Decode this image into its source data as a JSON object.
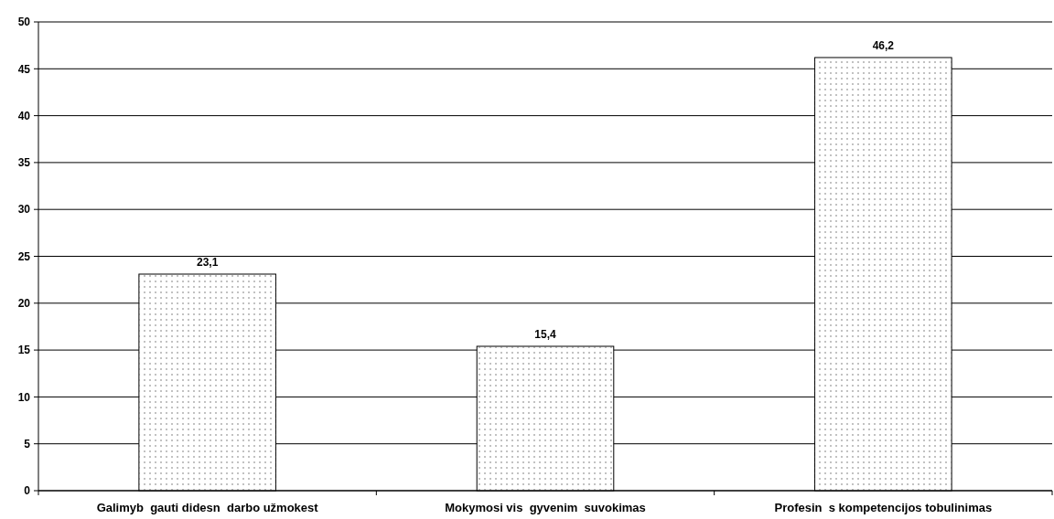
{
  "chart_data": {
    "type": "bar",
    "categories": [
      "Galimyb  gauti didesn  darbo užmokest",
      "Mokymosi vis  gyvenim  suvokimas",
      "Profesin  s kompetencijos tobulinimas"
    ],
    "values": [
      23.1,
      15.4,
      46.2
    ],
    "value_labels": [
      "23,1",
      "15,4",
      "46,2"
    ],
    "color": "#ffffff",
    "ylim": [
      0,
      50
    ],
    "yticks": [
      0,
      5,
      10,
      15,
      20,
      25,
      30,
      35,
      40,
      45,
      50
    ],
    "grid": "y"
  }
}
